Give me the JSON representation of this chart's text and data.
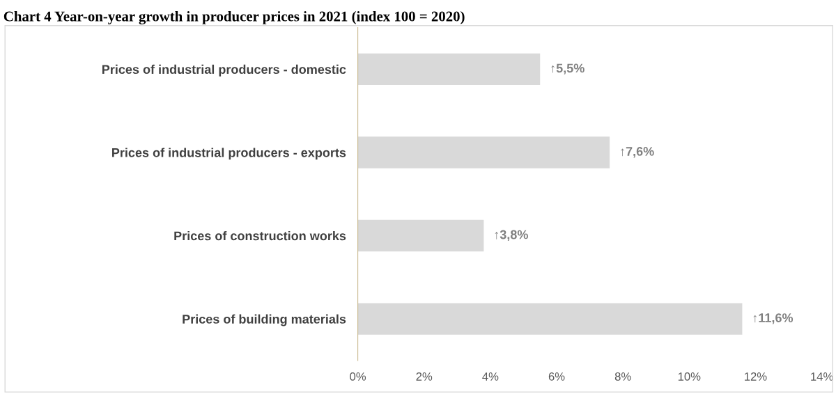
{
  "chart_data": {
    "type": "bar",
    "orientation": "horizontal",
    "title": "Chart 4 Year-on-year growth in producer prices in 2021 (index 100 = 2020)",
    "categories": [
      "Prices of industrial producers - domestic",
      "Prices of industrial producers - exports",
      "Prices of construction works",
      "Prices of building materials"
    ],
    "values": [
      5.5,
      7.6,
      3.8,
      11.6
    ],
    "value_labels": [
      "↑5,5%",
      "↑7,6%",
      "↑3,8%",
      "↑11,6%"
    ],
    "color": "#d9d9d9",
    "xlim": [
      0,
      14
    ],
    "xticks": [
      {
        "value": 0,
        "label": "0%"
      },
      {
        "value": 2,
        "label": "2%"
      },
      {
        "value": 4,
        "label": "4%"
      },
      {
        "value": 6,
        "label": "6%"
      },
      {
        "value": 8,
        "label": "8%"
      },
      {
        "value": 10,
        "label": "10%"
      },
      {
        "value": 12,
        "label": "12%"
      },
      {
        "value": 14,
        "label": "14%"
      }
    ],
    "grid": false,
    "legend": false
  }
}
